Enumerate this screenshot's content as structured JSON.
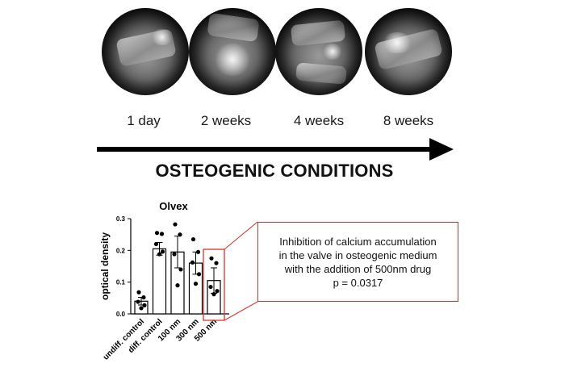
{
  "timeline": {
    "labels": [
      "1 day",
      "2 weeks",
      "4 weeks",
      "8 weeks"
    ],
    "heading": "OSTEOGENIC CONDITIONS"
  },
  "photos": [
    {
      "name": "valve-photo-1-day"
    },
    {
      "name": "valve-photo-2-weeks"
    },
    {
      "name": "valve-photo-4-weeks"
    },
    {
      "name": "valve-photo-8-weeks"
    }
  ],
  "note": {
    "lines": [
      "Inhibition of calcium accumulation",
      "in the valve in osteogenic medium",
      "with the addition of 500nm drug",
      "p = 0.0317"
    ],
    "border_color": "#d9342b"
  },
  "chart_data": {
    "type": "bar",
    "title": "Olvex",
    "xlabel": "",
    "ylabel": "optical density",
    "ylim": [
      0,
      0.3
    ],
    "yticks": [
      "0.0",
      "0.1",
      "0.2",
      "0.3"
    ],
    "categories": [
      "undiff. control",
      "diff. control",
      "100 nm",
      "300 nm",
      "500 nm"
    ],
    "values": [
      0.04,
      0.205,
      0.195,
      0.16,
      0.105
    ],
    "errors": [
      0.012,
      0.02,
      0.05,
      0.035,
      0.04
    ],
    "points": [
      [
        0.068,
        0.052,
        0.038,
        0.027,
        0.018
      ],
      [
        0.255,
        0.252,
        0.22,
        0.196,
        0.188
      ],
      [
        0.282,
        0.25,
        0.188,
        0.14,
        0.09
      ],
      [
        0.235,
        0.195,
        0.162,
        0.125,
        0.095
      ],
      [
        0.175,
        0.16,
        0.085,
        0.072,
        0.062
      ]
    ],
    "highlight_index": 4,
    "highlight_color": "#d9342b"
  }
}
